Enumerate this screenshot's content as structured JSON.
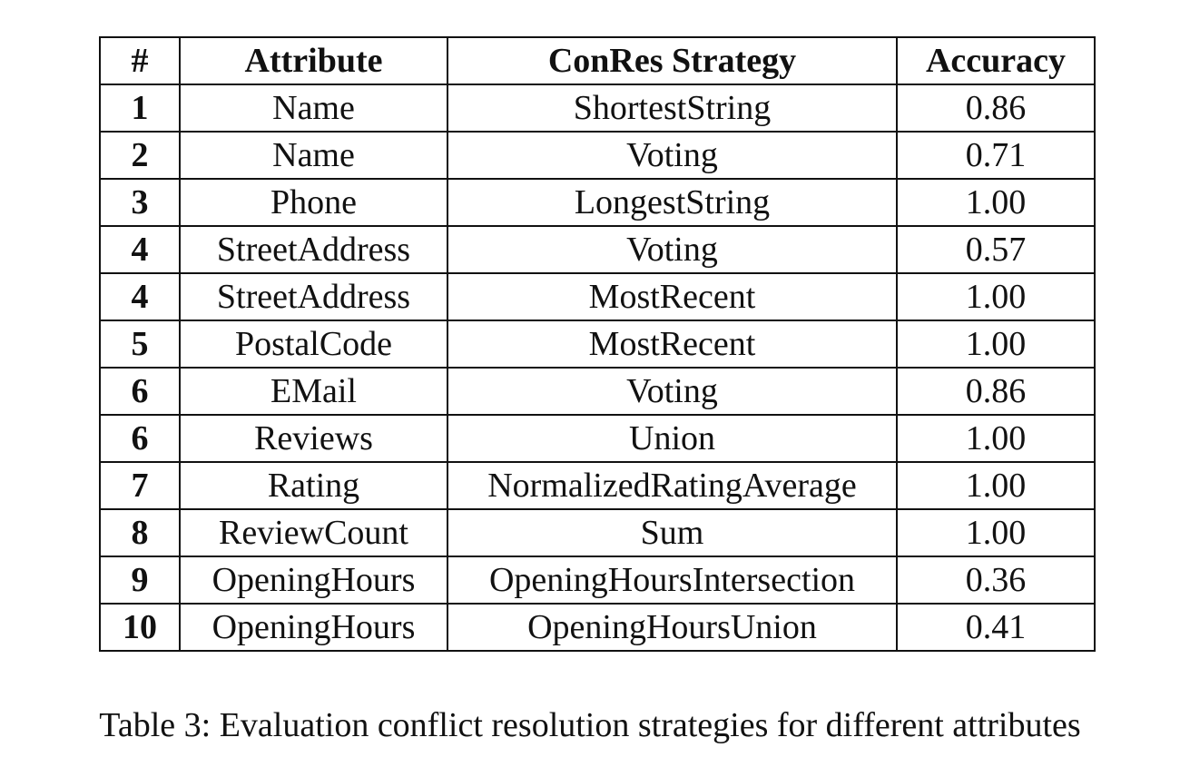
{
  "table": {
    "headers": [
      "#",
      "Attribute",
      "ConRes Strategy",
      "Accuracy"
    ],
    "rows": [
      {
        "num": "1",
        "attribute": "Name",
        "strategy": "ShortestString",
        "accuracy": "0.86"
      },
      {
        "num": "2",
        "attribute": "Name",
        "strategy": "Voting",
        "accuracy": "0.71"
      },
      {
        "num": "3",
        "attribute": "Phone",
        "strategy": "LongestString",
        "accuracy": "1.00"
      },
      {
        "num": "4",
        "attribute": "StreetAddress",
        "strategy": "Voting",
        "accuracy": "0.57"
      },
      {
        "num": "4",
        "attribute": "StreetAddress",
        "strategy": "MostRecent",
        "accuracy": "1.00"
      },
      {
        "num": "5",
        "attribute": "PostalCode",
        "strategy": "MostRecent",
        "accuracy": "1.00"
      },
      {
        "num": "6",
        "attribute": "EMail",
        "strategy": "Voting",
        "accuracy": "0.86"
      },
      {
        "num": "6",
        "attribute": "Reviews",
        "strategy": "Union",
        "accuracy": "1.00"
      },
      {
        "num": "7",
        "attribute": "Rating",
        "strategy": "NormalizedRatingAverage",
        "accuracy": "1.00"
      },
      {
        "num": "8",
        "attribute": "ReviewCount",
        "strategy": "Sum",
        "accuracy": "1.00"
      },
      {
        "num": "9",
        "attribute": "OpeningHours",
        "strategy": "OpeningHoursIntersection",
        "accuracy": "0.36"
      },
      {
        "num": "10",
        "attribute": "OpeningHours",
        "strategy": "OpeningHoursUnion",
        "accuracy": "0.41"
      }
    ]
  },
  "caption": "Table 3: Evaluation conflict resolution strategies for different attributes"
}
